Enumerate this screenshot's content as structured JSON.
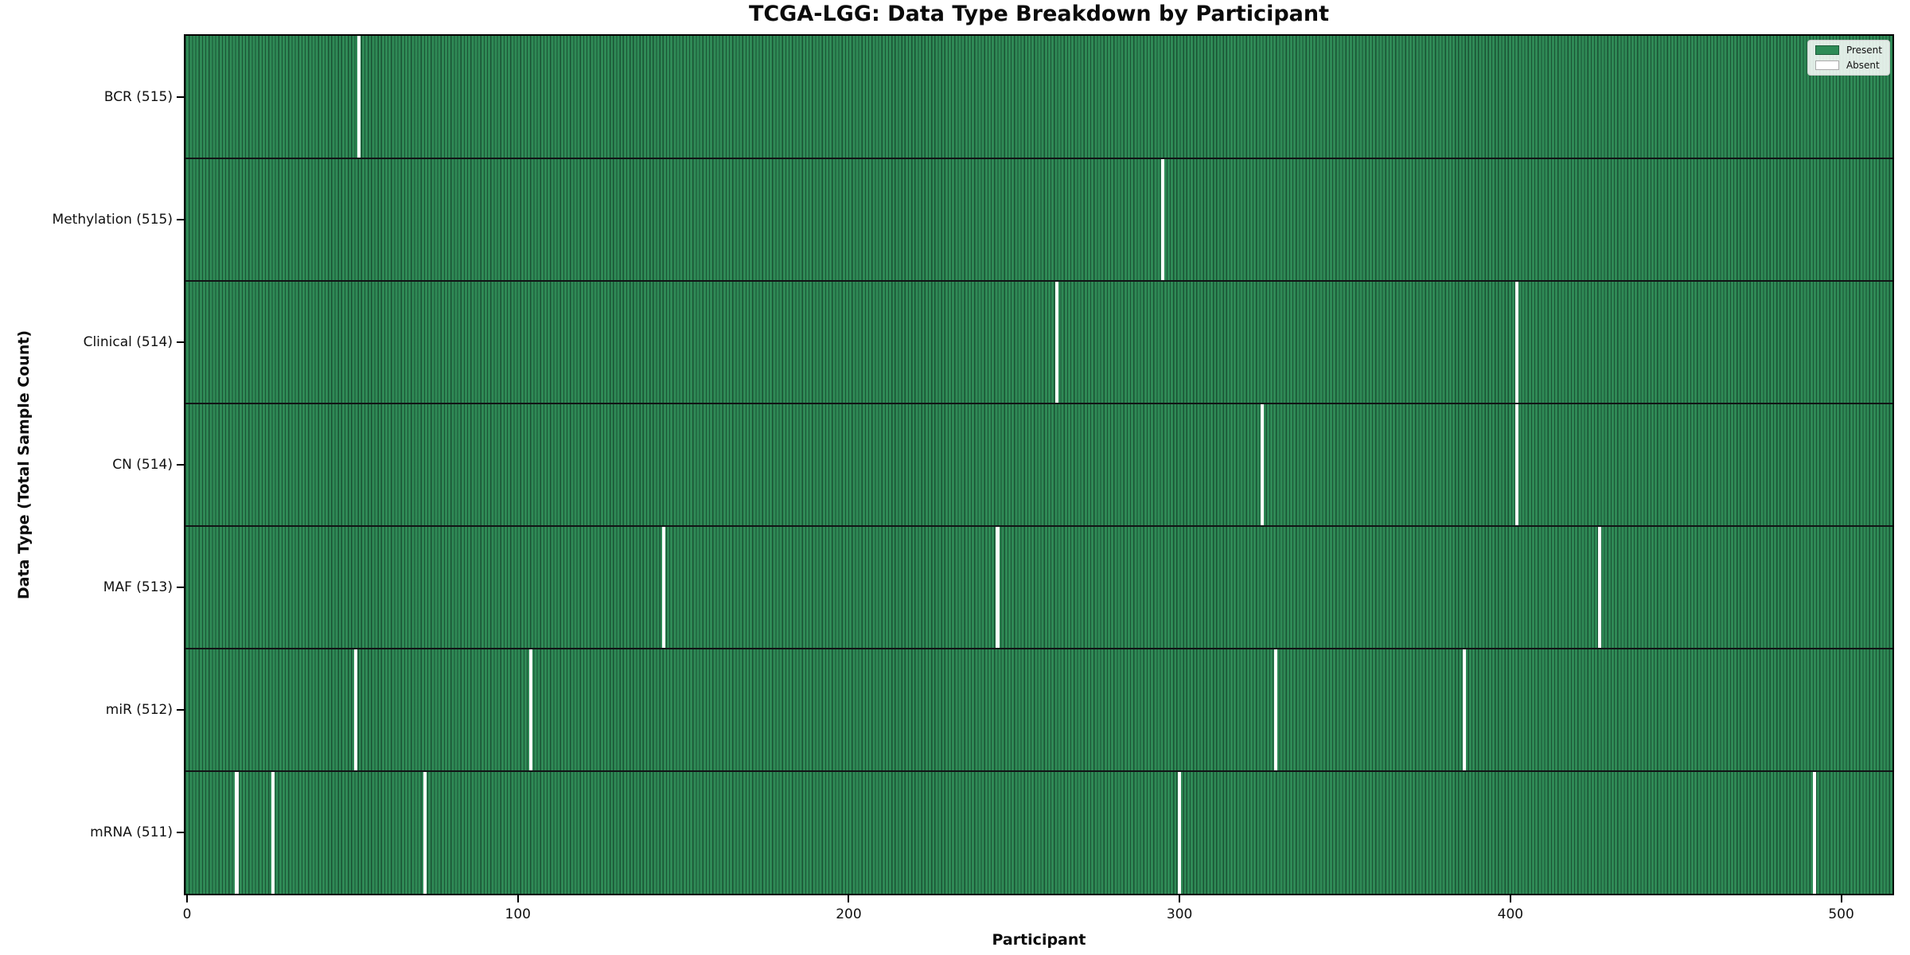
{
  "figure": {
    "title": "TCGA-LGG: Data Type Breakdown by Participant",
    "xlabel": "Participant",
    "ylabel": "Data Type (Total Sample Count)"
  },
  "colors": {
    "present_green": "#2e8b57",
    "cell_edge_dark": "#14432b",
    "absent_white": "#ffffff",
    "row_separator": "#121416",
    "axis": "#000000",
    "legend_border": "#cccccc",
    "text": "#111111"
  },
  "chart_data": {
    "type": "heatmap",
    "title": "TCGA-LGG: Data Type Breakdown by Participant",
    "xlabel": "Participant",
    "ylabel": "Data Type (Total Sample Count)",
    "legend": [
      {
        "label": "Present",
        "color": "#2e8b57"
      },
      {
        "label": "Absent",
        "color": "#ffffff"
      }
    ],
    "legend_position": "upper right",
    "grid": false,
    "n_participants": 516,
    "x_range": [
      -0.5,
      515.5
    ],
    "x_ticks": [
      0,
      100,
      200,
      300,
      400,
      500
    ],
    "rows": [
      {
        "label": "BCR (515)",
        "data_type": "BCR",
        "present_count": 515,
        "absent_participants": [
          52
        ]
      },
      {
        "label": "Methylation (515)",
        "data_type": "Methylation",
        "present_count": 515,
        "absent_participants": [
          295
        ]
      },
      {
        "label": "Clinical (514)",
        "data_type": "Clinical",
        "present_count": 514,
        "absent_participants": [
          263,
          402
        ]
      },
      {
        "label": "CN (514)",
        "data_type": "CN",
        "present_count": 514,
        "absent_participants": [
          325,
          402
        ]
      },
      {
        "label": "MAF (513)",
        "data_type": "MAF",
        "present_count": 513,
        "absent_participants": [
          144,
          245,
          427
        ]
      },
      {
        "label": "miR (512)",
        "data_type": "miR",
        "present_count": 512,
        "absent_participants": [
          51,
          104,
          329,
          386
        ]
      },
      {
        "label": "mRNA (511)",
        "data_type": "mRNA",
        "present_count": 511,
        "absent_participants": [
          15,
          26,
          72,
          300,
          492
        ]
      }
    ]
  }
}
